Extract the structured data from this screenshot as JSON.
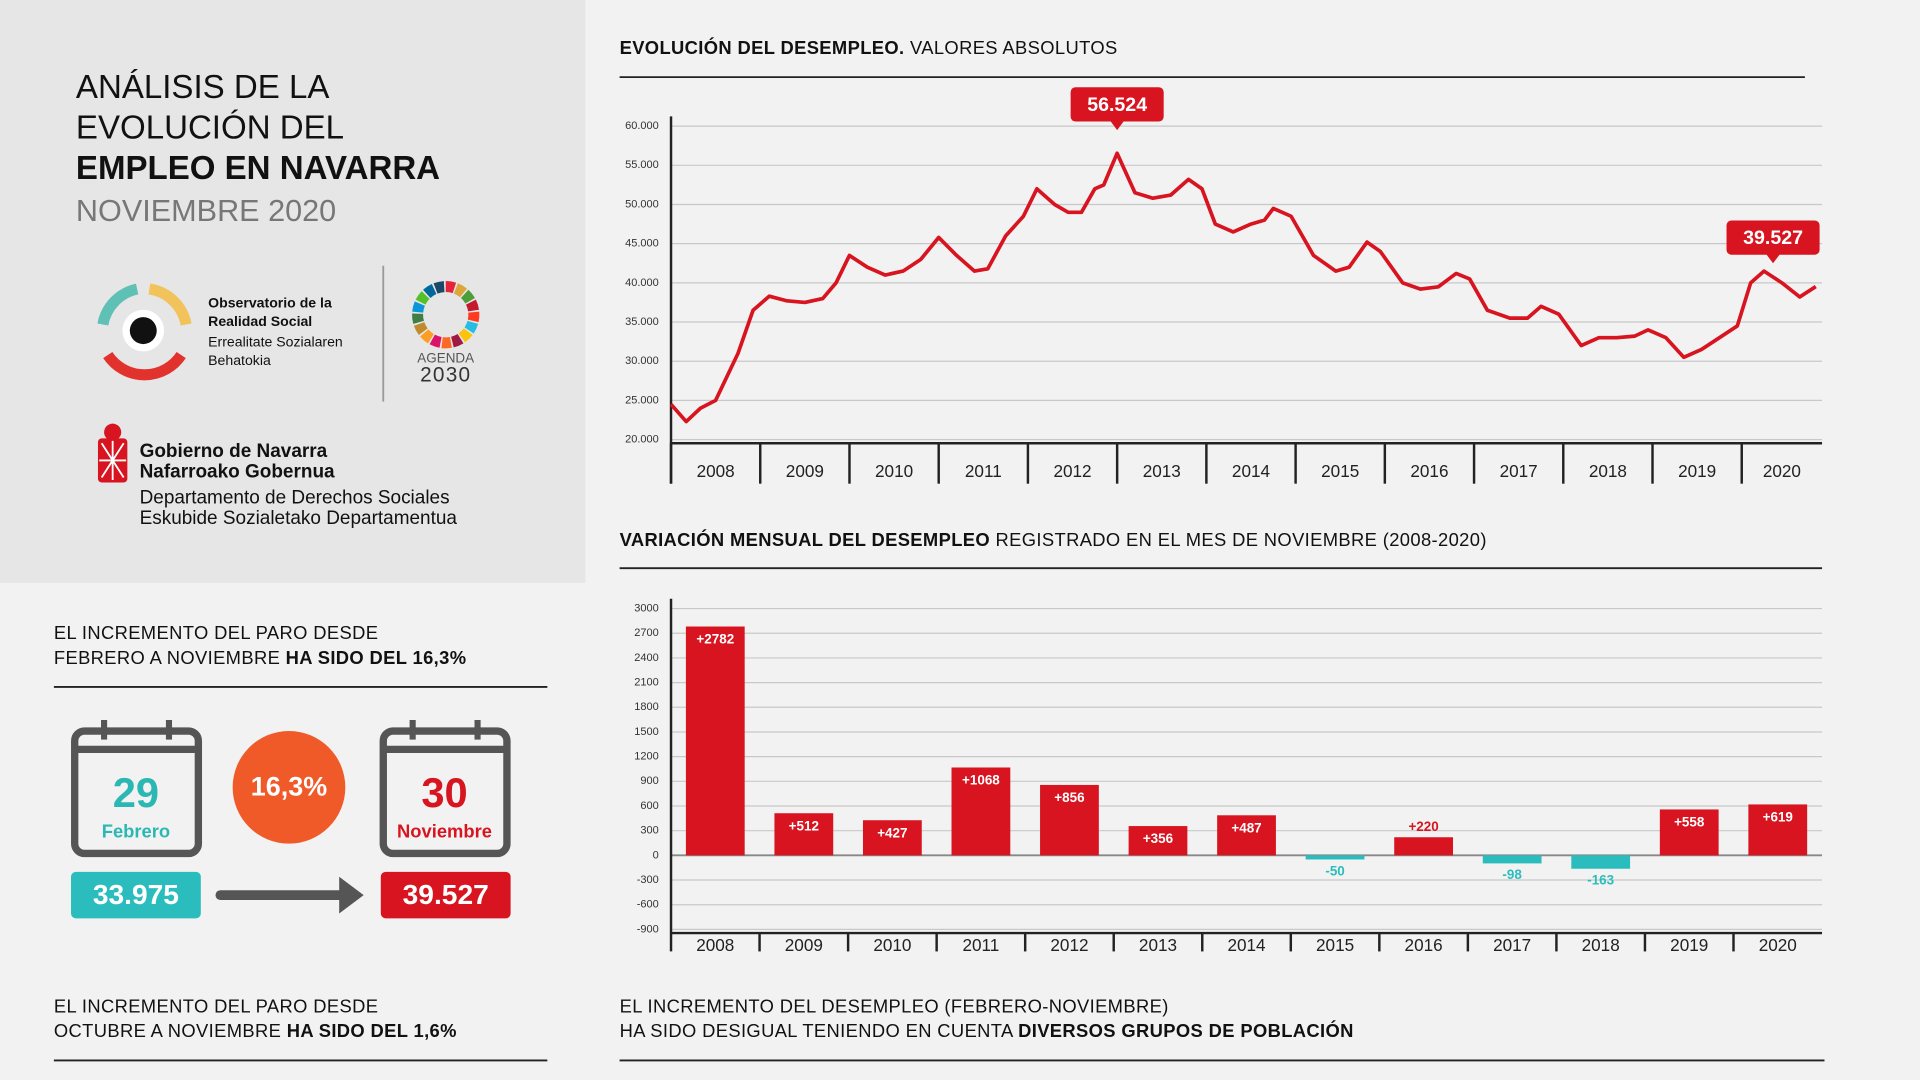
{
  "header": {
    "title_lines": [
      "ANÁLISIS DE LA",
      "EVOLUCIÓN DEL"
    ],
    "title_bold": "EMPLEO EN NAVARRA",
    "subtitle": "NOVIEMBRE 2020"
  },
  "logos": {
    "observatorio": [
      "Observatorio de la",
      "Realidad Social"
    ],
    "observatorio_eu": [
      "Errealitate Sozialaren",
      "Behatokia"
    ],
    "agenda": [
      "AGENDA",
      "2030"
    ],
    "gobierno": [
      "Gobierno de Navarra",
      "Nafarroako Gobernua"
    ],
    "departamento": [
      "Departamento de Derechos Sociales",
      "Eskubide Sozialetako Departamentua"
    ]
  },
  "stat_feb_nov": {
    "heading": [
      "EL INCREMENTO DEL PARO DESDE",
      "FEBRERO A NOVIEMBRE ",
      "HA SIDO DEL 16,3%"
    ],
    "from_day": "29",
    "from_month": "Febrero",
    "from_value": "33.975",
    "change": "16,3%",
    "to_day": "30",
    "to_month": "Noviembre",
    "to_value": "39.527"
  },
  "stat_oct_nov": {
    "heading": [
      "EL INCREMENTO DEL PARO DESDE",
      "OCTUBRE A NOVIEMBRE ",
      "HA SIDO DEL 1,6%"
    ]
  },
  "footer": {
    "heading": [
      "EL INCREMENTO DEL DESEMPLEO (FEBRERO-NOVIEMBRE)",
      "HA SIDO DESIGUAL TENIENDO EN CUENTA ",
      "DIVERSOS GRUPOS DE POBLACIÓN"
    ]
  },
  "chart_data": [
    {
      "type": "line",
      "title": [
        "EVOLUCIÓN DEL DESEMPLEO.",
        " VALORES ABSOLUTOS"
      ],
      "color": "#d7141f",
      "x": [
        2008.0,
        2008.17,
        2008.33,
        2008.5,
        2008.75,
        2008.92,
        2009.1,
        2009.3,
        2009.5,
        2009.7,
        2009.85,
        2010.0,
        2010.2,
        2010.4,
        2010.6,
        2010.8,
        2011.0,
        2011.2,
        2011.4,
        2011.55,
        2011.75,
        2011.95,
        2012.1,
        2012.3,
        2012.45,
        2012.6,
        2012.75,
        2012.85,
        2013.0,
        2013.2,
        2013.4,
        2013.6,
        2013.8,
        2013.95,
        2014.1,
        2014.3,
        2014.5,
        2014.65,
        2014.75,
        2014.95,
        2015.2,
        2015.45,
        2015.6,
        2015.8,
        2015.95,
        2016.2,
        2016.4,
        2016.6,
        2016.8,
        2016.95,
        2017.15,
        2017.4,
        2017.6,
        2017.75,
        2017.95,
        2018.2,
        2018.4,
        2018.6,
        2018.8,
        2018.95,
        2019.15,
        2019.35,
        2019.55,
        2019.75,
        2019.95,
        2020.1,
        2020.25,
        2020.45,
        2020.65,
        2020.83
      ],
      "values": [
        24500,
        22300,
        24000,
        25000,
        31000,
        36500,
        38300,
        37700,
        37500,
        38000,
        40000,
        43500,
        42000,
        41000,
        41500,
        43000,
        45800,
        43500,
        41500,
        41800,
        46000,
        48500,
        52000,
        50000,
        49000,
        49000,
        52000,
        52500,
        56524,
        51500,
        50800,
        51200,
        53200,
        52000,
        47500,
        46500,
        47500,
        48000,
        49500,
        48500,
        43500,
        41500,
        42000,
        45200,
        44000,
        40000,
        39200,
        39500,
        41200,
        40500,
        36500,
        35500,
        35500,
        37000,
        36000,
        32000,
        33000,
        33000,
        33200,
        34000,
        33000,
        30500,
        31500,
        33000,
        34500,
        40000,
        41500,
        40000,
        38200,
        39527
      ],
      "annotations": [
        {
          "x": 2013.0,
          "value": 56524,
          "label": "56.524"
        },
        {
          "x": 2020.83,
          "value": 39527,
          "label": "39.527"
        }
      ],
      "xlim": [
        2008,
        2020.9
      ],
      "xticks": [
        2008,
        2009,
        2010,
        2011,
        2012,
        2013,
        2014,
        2015,
        2016,
        2017,
        2018,
        2019,
        2020
      ],
      "ylim": [
        20000,
        60000
      ],
      "yticks": [
        {
          "value": 20000,
          "label": "20.000"
        },
        {
          "value": 25000,
          "label": "25.000"
        },
        {
          "value": 30000,
          "label": "30.000"
        },
        {
          "value": 35000,
          "label": "35.000"
        },
        {
          "value": 40000,
          "label": "40.000"
        },
        {
          "value": 45000,
          "label": "45.000"
        },
        {
          "value": 50000,
          "label": "50.000"
        },
        {
          "value": 55000,
          "label": "55.000"
        },
        {
          "value": 60000,
          "label": "60.000"
        }
      ],
      "grid": true
    },
    {
      "type": "bar",
      "title": [
        "VARIACIÓN MENSUAL DEL DESEMPLEO",
        " REGISTRADO EN EL MES DE NOVIEMBRE (2008-2020)"
      ],
      "color": "#d7141f",
      "negative_color": "#2bbdbd",
      "categories": [
        "2008",
        "2009",
        "2010",
        "2011",
        "2012",
        "2013",
        "2014",
        "2015",
        "2016",
        "2017",
        "2018",
        "2019",
        "2020"
      ],
      "values": [
        2782,
        512,
        427,
        1068,
        856,
        356,
        487,
        -50,
        220,
        -98,
        -163,
        558,
        619
      ],
      "value_labels": [
        "+2782",
        "+512",
        "+427",
        "+1068",
        "+856",
        "+356",
        "+487",
        "-50",
        "+220",
        "-98",
        "-163",
        "+558",
        "+619"
      ],
      "ylim": [
        -900,
        3000
      ],
      "yticks": [
        -900,
        -600,
        -300,
        0,
        300,
        600,
        900,
        1200,
        1500,
        1800,
        2100,
        2400,
        2700,
        3000
      ],
      "grid": true
    }
  ]
}
